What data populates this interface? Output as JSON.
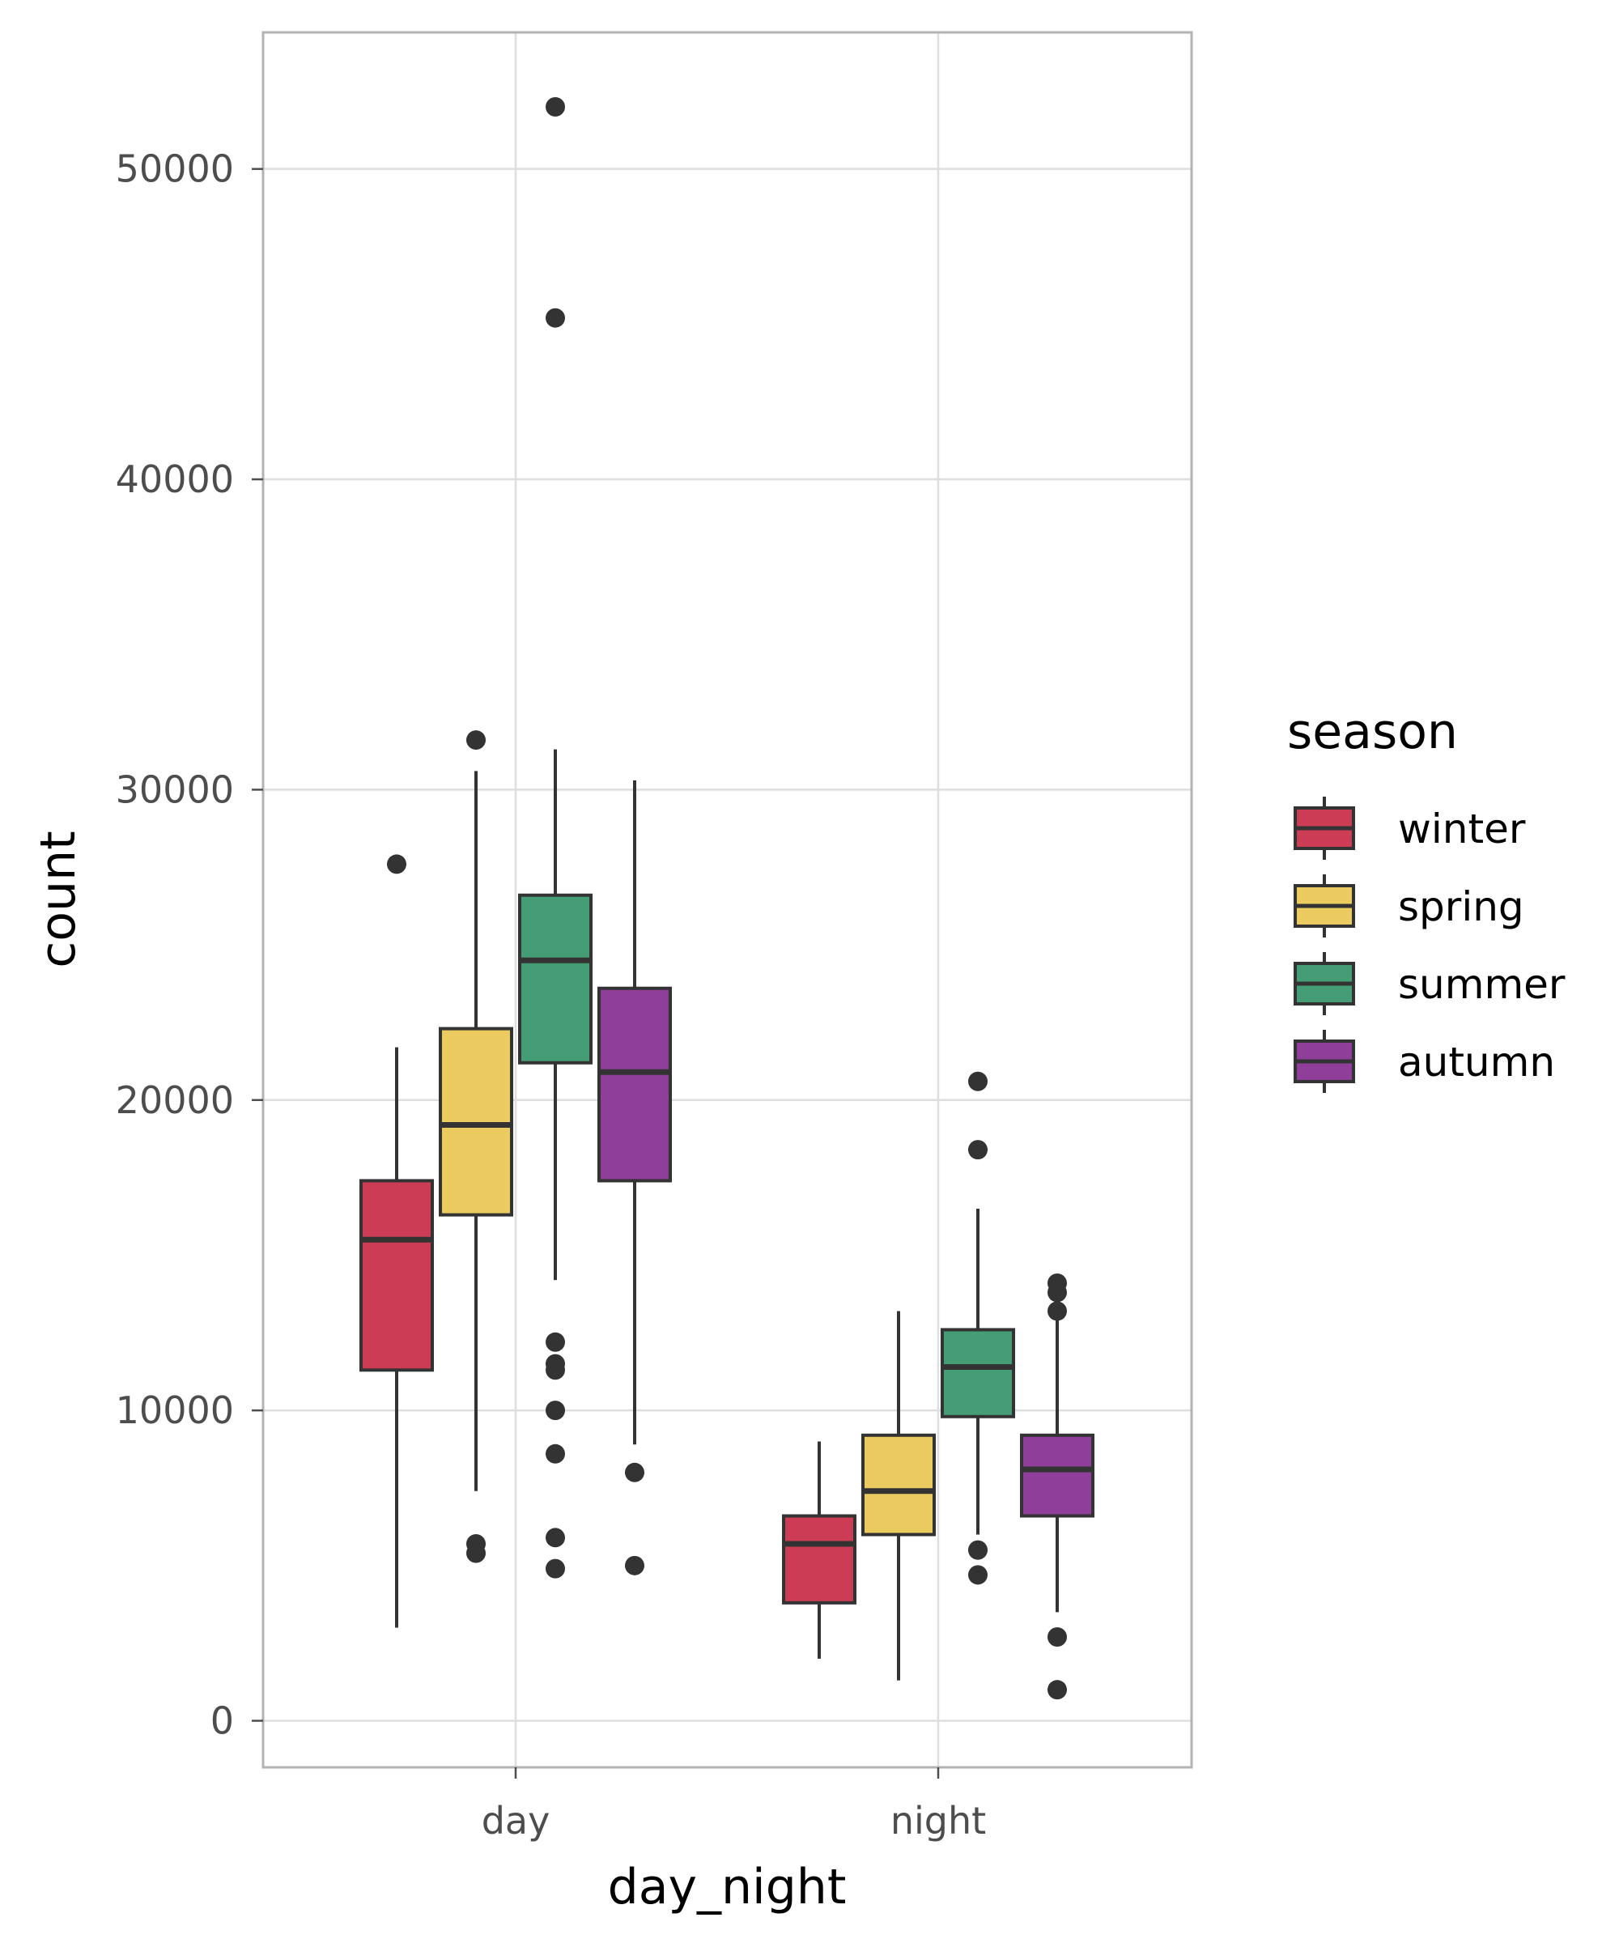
{
  "chart_data": {
    "type": "boxplot",
    "xlabel": "day_night",
    "ylabel": "count",
    "categories": [
      "day",
      "night"
    ],
    "y_ticks": [
      0,
      10000,
      20000,
      30000,
      40000,
      50000
    ],
    "y_tick_labels": [
      "0",
      "10000",
      "20000",
      "30000",
      "40000",
      "50000"
    ],
    "ylim": [
      -1500,
      54400
    ],
    "grid": true,
    "legend": {
      "title": "season",
      "position": "right"
    },
    "series": [
      {
        "name": "winter",
        "color": "#cc3d55",
        "boxes": [
          {
            "category": "day",
            "q1": 11300,
            "median": 15500,
            "q3": 17400,
            "whisker_low": 3000,
            "whisker_high": 21700,
            "outliers": [
              27600
            ]
          },
          {
            "category": "night",
            "q1": 3800,
            "median": 5700,
            "q3": 6600,
            "whisker_low": 2000,
            "whisker_high": 9000,
            "outliers": []
          }
        ]
      },
      {
        "name": "spring",
        "color": "#ebcb5f",
        "boxes": [
          {
            "category": "day",
            "q1": 16300,
            "median": 19200,
            "q3": 22300,
            "whisker_low": 7400,
            "whisker_high": 30600,
            "outliers": [
              31600,
              5700,
              5400
            ]
          },
          {
            "category": "night",
            "q1": 6000,
            "median": 7400,
            "q3": 9200,
            "whisker_low": 1300,
            "whisker_high": 13200,
            "outliers": []
          }
        ]
      },
      {
        "name": "summer",
        "color": "#449d75",
        "boxes": [
          {
            "category": "day",
            "q1": 21200,
            "median": 24500,
            "q3": 26600,
            "whisker_low": 14200,
            "whisker_high": 31300,
            "outliers": [
              52000,
              45200,
              12200,
              11500,
              11300,
              10000,
              8600,
              5900,
              4900
            ]
          },
          {
            "category": "night",
            "q1": 9800,
            "median": 11400,
            "q3": 12600,
            "whisker_low": 6000,
            "whisker_high": 16500,
            "outliers": [
              20600,
              18400,
              5500,
              4700
            ]
          }
        ]
      },
      {
        "name": "autumn",
        "color": "#8f3f9a",
        "boxes": [
          {
            "category": "day",
            "q1": 17400,
            "median": 20900,
            "q3": 23600,
            "whisker_low": 8900,
            "whisker_high": 30300,
            "outliers": [
              8000,
              5000
            ]
          },
          {
            "category": "night",
            "q1": 6600,
            "median": 8100,
            "q3": 9200,
            "whisker_low": 3500,
            "whisker_high": 13000,
            "outliers": [
              14100,
              13800,
              13200,
              2700,
              1000
            ]
          }
        ]
      }
    ]
  }
}
